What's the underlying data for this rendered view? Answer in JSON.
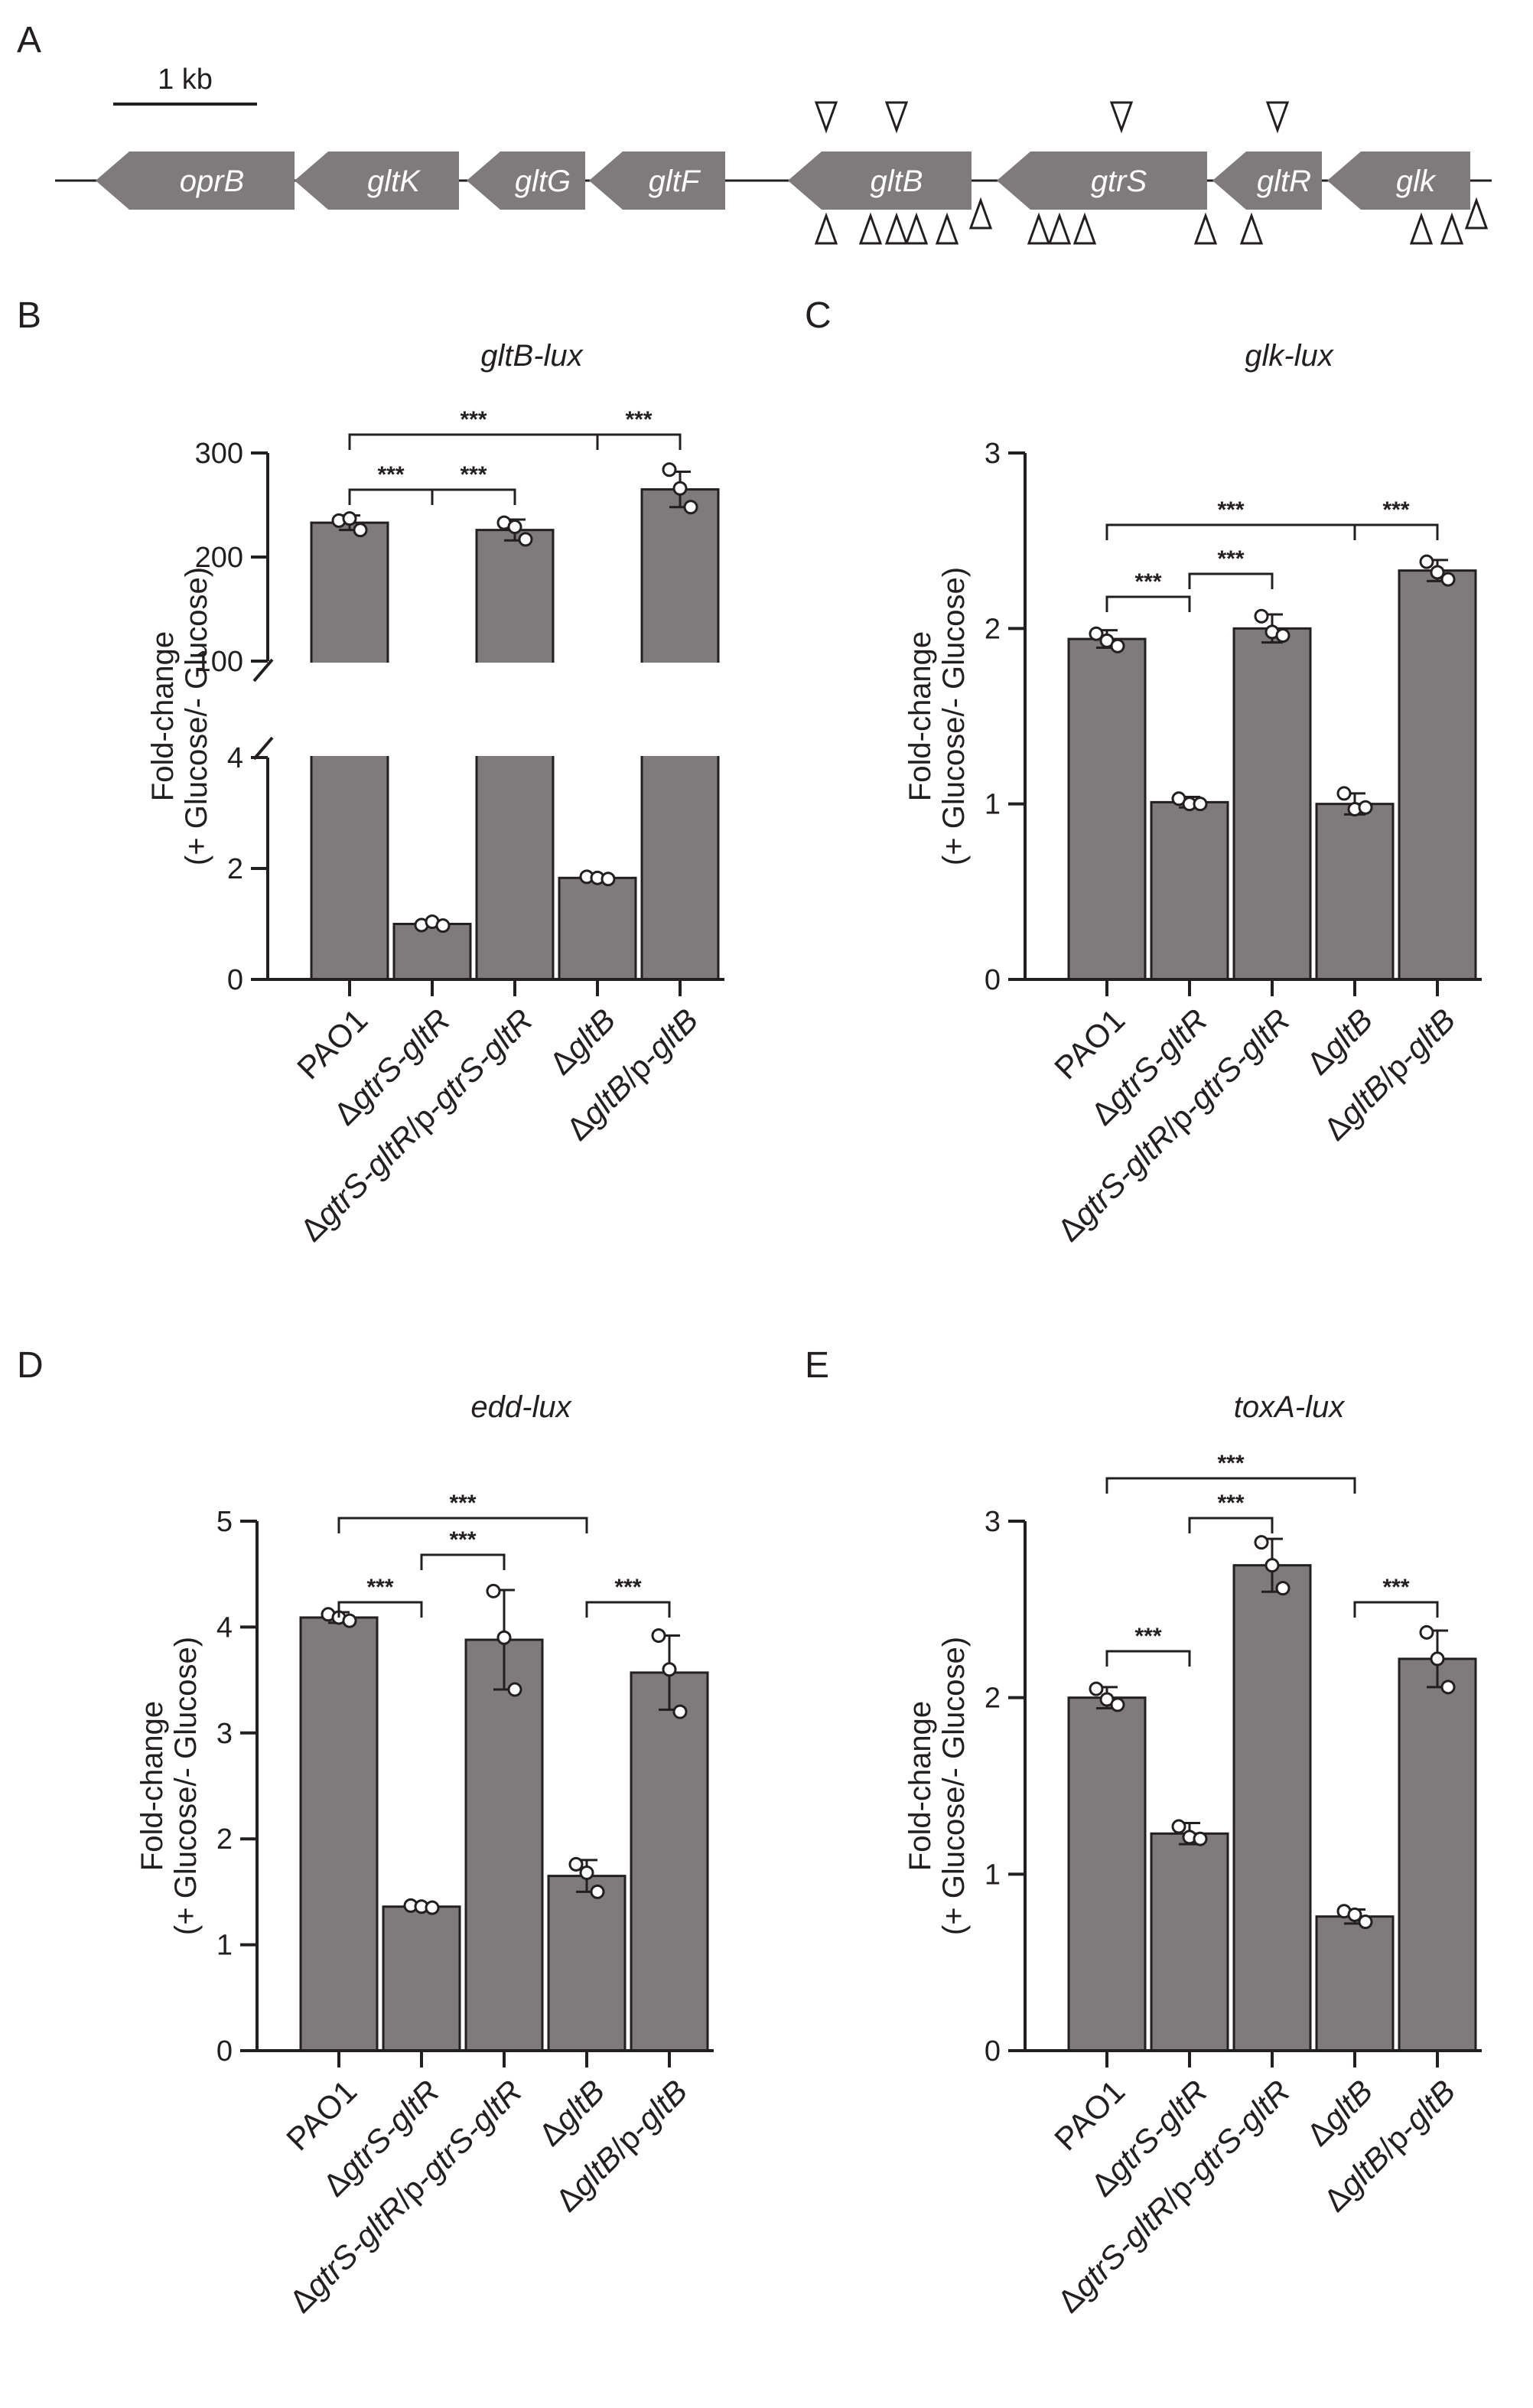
{
  "figure": {
    "panel_letters": [
      "A",
      "B",
      "C",
      "D",
      "E"
    ],
    "sig_label": "***",
    "bar_color": "#7f7a7b",
    "ink_color": "#231f20"
  },
  "gene_map": {
    "scale_label": "1 kb",
    "genes": [
      "oprB",
      "gltK",
      "gltG",
      "gltF",
      "gltB",
      "gtrS",
      "gltR",
      "glk"
    ],
    "direction": "leftward"
  },
  "chart_data": [
    {
      "panel": "B",
      "type": "bar",
      "title": "gltB-lux",
      "ylabel_line1": "Fold-change",
      "ylabel_line2": "(+ Glucose/- Glucose)",
      "categories": [
        {
          "pre": "PAO1",
          "parts": [
            {
              "t": "PAO1",
              "i": false
            }
          ]
        },
        {
          "pre": "ΔgtrS-gltR",
          "parts": [
            {
              "t": "Δ",
              "i": false
            },
            {
              "t": "gtrS-gltR",
              "i": true
            }
          ]
        },
        {
          "pre": "ΔgtrS-gltR/p-gtrS-gltR",
          "parts": [
            {
              "t": "Δ",
              "i": false
            },
            {
              "t": "gtrS-gltR",
              "i": true
            },
            {
              "t": "/p-",
              "i": false
            },
            {
              "t": "gtrS-gltR",
              "i": true
            }
          ]
        },
        {
          "pre": "ΔgltB",
          "parts": [
            {
              "t": "Δ",
              "i": false
            },
            {
              "t": "gltB",
              "i": true
            }
          ]
        },
        {
          "pre": "ΔgltB/p-gltB",
          "parts": [
            {
              "t": "Δ",
              "i": false
            },
            {
              "t": "gltB",
              "i": true
            },
            {
              "t": "/p-",
              "i": false
            },
            {
              "t": "gltB",
              "i": true
            }
          ]
        }
      ],
      "values": [
        233,
        1.0,
        226,
        1.83,
        265
      ],
      "errors": [
        7,
        0.05,
        10,
        0.04,
        17
      ],
      "replicates": [
        [
          235,
          237,
          226
        ],
        [
          0.98,
          1.04,
          0.97
        ],
        [
          233,
          229,
          217
        ],
        [
          1.85,
          1.83,
          1.81
        ],
        [
          284,
          266,
          248
        ]
      ],
      "broken_axis": true,
      "lower_ylim": [
        0,
        4
      ],
      "lower_ticks": [
        0,
        2,
        4
      ],
      "upper_ylim": [
        100,
        300
      ],
      "upper_ticks": [
        100,
        200,
        300
      ],
      "comparisons": [
        [
          0,
          1
        ],
        [
          1,
          2
        ],
        [
          0,
          3
        ],
        [
          3,
          4
        ]
      ]
    },
    {
      "panel": "C",
      "type": "bar",
      "title": "glk-lux",
      "ylabel_line1": "Fold-change",
      "ylabel_line2": "(+ Glucose/- Glucose)",
      "categories": [
        {
          "pre": "PAO1",
          "parts": [
            {
              "t": "PAO1",
              "i": false
            }
          ]
        },
        {
          "pre": "ΔgtrS-gltR",
          "parts": [
            {
              "t": "Δ",
              "i": false
            },
            {
              "t": "gtrS-gltR",
              "i": true
            }
          ]
        },
        {
          "pre": "ΔgtrS-gltR/p-gtrS-gltR",
          "parts": [
            {
              "t": "Δ",
              "i": false
            },
            {
              "t": "gtrS-gltR",
              "i": true
            },
            {
              "t": "/p-",
              "i": false
            },
            {
              "t": "gtrS-gltR",
              "i": true
            }
          ]
        },
        {
          "pre": "ΔgltB",
          "parts": [
            {
              "t": "Δ",
              "i": false
            },
            {
              "t": "gltB",
              "i": true
            }
          ]
        },
        {
          "pre": "ΔgltB/p-gltB",
          "parts": [
            {
              "t": "Δ",
              "i": false
            },
            {
              "t": "gltB",
              "i": true
            },
            {
              "t": "/p-",
              "i": false
            },
            {
              "t": "gltB",
              "i": true
            }
          ]
        }
      ],
      "values": [
        1.94,
        1.01,
        2.0,
        1.0,
        2.33
      ],
      "errors": [
        0.05,
        0.03,
        0.08,
        0.06,
        0.06
      ],
      "replicates": [
        [
          1.97,
          1.93,
          1.9
        ],
        [
          1.03,
          1.0,
          1.0
        ],
        [
          2.07,
          1.98,
          1.96
        ],
        [
          1.06,
          0.97,
          0.98
        ],
        [
          2.38,
          2.32,
          2.28
        ]
      ],
      "ylim": [
        0,
        3
      ],
      "ticks": [
        0,
        1,
        2,
        3
      ],
      "comparisons": [
        [
          0,
          1
        ],
        [
          1,
          2
        ],
        [
          0,
          3
        ],
        [
          3,
          4
        ]
      ]
    },
    {
      "panel": "D",
      "type": "bar",
      "title": "edd-lux",
      "ylabel_line1": "Fold-change",
      "ylabel_line2": "(+ Glucose/- Glucose)",
      "categories": [
        {
          "pre": "PAO1",
          "parts": [
            {
              "t": "PAO1",
              "i": false
            }
          ]
        },
        {
          "pre": "ΔgtrS-gltR",
          "parts": [
            {
              "t": "Δ",
              "i": false
            },
            {
              "t": "gtrS-gltR",
              "i": true
            }
          ]
        },
        {
          "pre": "ΔgtrS-gltR/p-gtrS-gltR",
          "parts": [
            {
              "t": "Δ",
              "i": false
            },
            {
              "t": "gtrS-gltR",
              "i": true
            },
            {
              "t": "/p-",
              "i": false
            },
            {
              "t": "gtrS-gltR",
              "i": true
            }
          ]
        },
        {
          "pre": "ΔgltB",
          "parts": [
            {
              "t": "Δ",
              "i": false
            },
            {
              "t": "gltB",
              "i": true
            }
          ]
        },
        {
          "pre": "ΔgltB/p-gltB",
          "parts": [
            {
              "t": "Δ",
              "i": false
            },
            {
              "t": "gltB",
              "i": true
            },
            {
              "t": "/p-",
              "i": false
            },
            {
              "t": "gltB",
              "i": true
            }
          ]
        }
      ],
      "values": [
        4.09,
        1.36,
        3.88,
        1.65,
        3.57
      ],
      "errors": [
        0.05,
        0.02,
        0.47,
        0.15,
        0.35
      ],
      "replicates": [
        [
          4.12,
          4.09,
          4.06
        ],
        [
          1.37,
          1.36,
          1.35
        ],
        [
          4.34,
          3.9,
          3.41
        ],
        [
          1.76,
          1.68,
          1.5
        ],
        [
          3.92,
          3.6,
          3.2
        ]
      ],
      "ylim": [
        0,
        5
      ],
      "ticks": [
        0,
        1,
        2,
        3,
        4,
        5
      ],
      "comparisons": [
        [
          0,
          1
        ],
        [
          1,
          2
        ],
        [
          0,
          3
        ],
        [
          3,
          4
        ]
      ]
    },
    {
      "panel": "E",
      "type": "bar",
      "title": "toxA-lux",
      "ylabel_line1": "Fold-change",
      "ylabel_line2": "(+ Glucose/- Glucose)",
      "categories": [
        {
          "pre": "PAO1",
          "parts": [
            {
              "t": "PAO1",
              "i": false
            }
          ]
        },
        {
          "pre": "ΔgtrS-gltR",
          "parts": [
            {
              "t": "Δ",
              "i": false
            },
            {
              "t": "gtrS-gltR",
              "i": true
            }
          ]
        },
        {
          "pre": "ΔgtrS-gltR/p-gtrS-gltR",
          "parts": [
            {
              "t": "Δ",
              "i": false
            },
            {
              "t": "gtrS-gltR",
              "i": true
            },
            {
              "t": "/p-",
              "i": false
            },
            {
              "t": "gtrS-gltR",
              "i": true
            }
          ]
        },
        {
          "pre": "ΔgltB",
          "parts": [
            {
              "t": "Δ",
              "i": false
            },
            {
              "t": "gltB",
              "i": true
            }
          ]
        },
        {
          "pre": "ΔgltB/p-gltB",
          "parts": [
            {
              "t": "Δ",
              "i": false
            },
            {
              "t": "gltB",
              "i": true
            },
            {
              "t": "/p-",
              "i": false
            },
            {
              "t": "gltB",
              "i": true
            }
          ]
        }
      ],
      "values": [
        2.0,
        1.23,
        2.75,
        0.76,
        2.22
      ],
      "errors": [
        0.06,
        0.06,
        0.15,
        0.04,
        0.16
      ],
      "replicates": [
        [
          2.05,
          1.99,
          1.96
        ],
        [
          1.27,
          1.21,
          1.2
        ],
        [
          2.88,
          2.75,
          2.62
        ],
        [
          0.79,
          0.77,
          0.73
        ],
        [
          2.37,
          2.22,
          2.06
        ]
      ],
      "ylim": [
        0,
        3
      ],
      "ticks": [
        0,
        1,
        2,
        3
      ],
      "comparisons": [
        [
          0,
          1
        ],
        [
          1,
          2
        ],
        [
          0,
          3
        ],
        [
          3,
          4
        ]
      ]
    }
  ]
}
